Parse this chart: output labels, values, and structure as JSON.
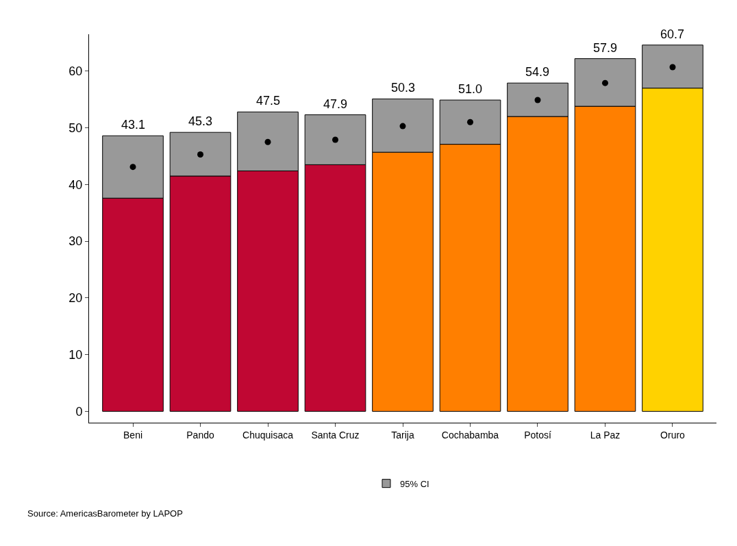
{
  "chart_data": {
    "type": "bar",
    "stacked": true,
    "categories": [
      "Beni",
      "Pando",
      "Chuquisaca",
      "Santa Cruz",
      "Tarija",
      "Cochabamba",
      "Potosí",
      "La Paz",
      "Oruro"
    ],
    "series": [
      {
        "colors": [
          "#c00733",
          "#c00733",
          "#c00733",
          "#c00733",
          "#ff7f00",
          "#ff7f00",
          "#ff7f00",
          "#ff7f00",
          "#ffd200"
        ],
        "values": [
          37.6,
          41.5,
          42.4,
          43.5,
          45.7,
          47.1,
          52.0,
          53.8,
          57.0
        ]
      },
      {
        "name": "95% CI",
        "color": "#999999",
        "values": [
          11.0,
          7.7,
          10.4,
          8.8,
          9.4,
          7.8,
          5.9,
          8.4,
          7.6
        ]
      },
      {
        "type": "scatter",
        "color": "#000000",
        "values": [
          43.1,
          45.3,
          47.5,
          47.9,
          50.3,
          51.0,
          54.9,
          57.9,
          60.7
        ],
        "value_labels": [
          "43.1",
          "45.3",
          "47.5",
          "47.9",
          "50.3",
          "51.0",
          "54.9",
          "57.9",
          "60.7"
        ]
      }
    ],
    "ylim": [
      -2,
      66.5
    ],
    "yticks": [
      0,
      10,
      20,
      30,
      40,
      50,
      60
    ],
    "legend": "bottom",
    "marker": "circle",
    "annotations": [
      "Source: AmericasBarometer by LAPOP"
    ]
  }
}
